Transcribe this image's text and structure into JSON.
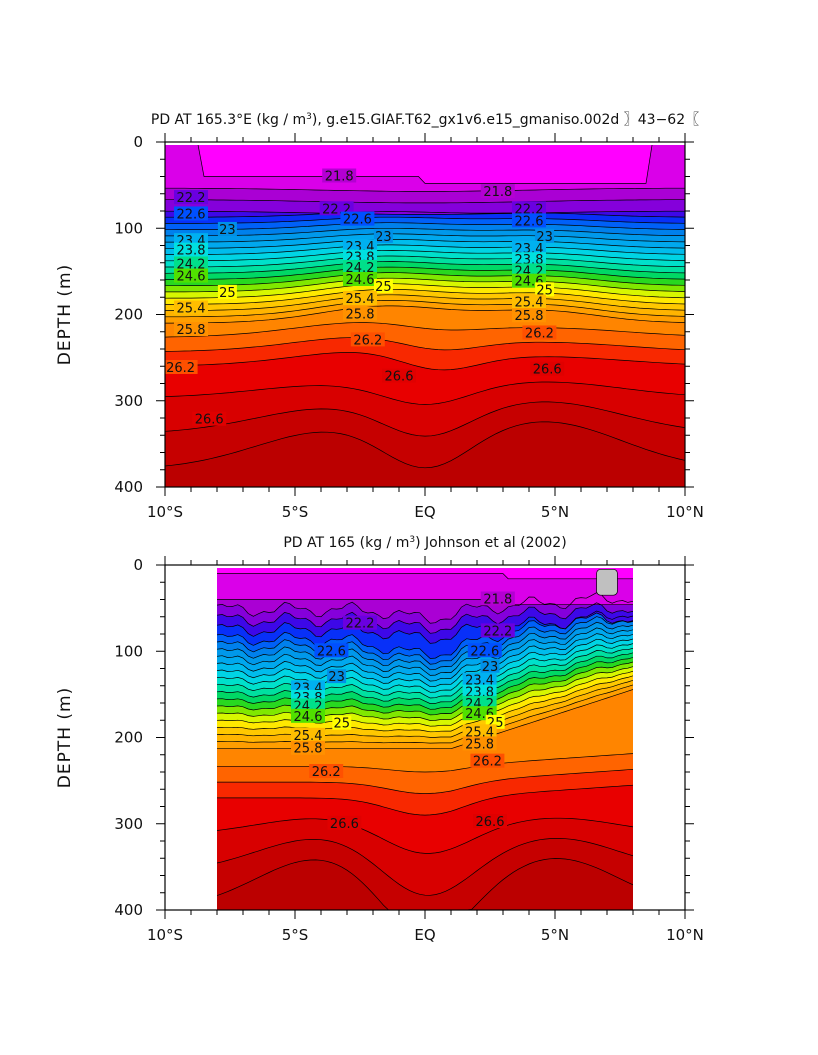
{
  "chart_data": [
    {
      "type": "contour",
      "title": "PD AT 165.3°E (kg / m³), g.e15.GIAF.T62_gx1v6.e15_gmaniso.002d 〗43–62〖",
      "title_parts": [
        "PD AT 165.3°E (kg / m",
        "3",
        "), g.e15.GIAF.T62_gx1v6.e15_gmaniso.002d ",
        "〗43−62〖"
      ],
      "ylabel": "DEPTH (m)",
      "xlabel": "",
      "x_tick_labels": [
        "10°S",
        "5°S",
        "EQ",
        "5°N",
        "10°N"
      ],
      "y_tick_labels": [
        "0",
        "100",
        "200",
        "300",
        "400"
      ],
      "xlim": [
        -10,
        10
      ],
      "ylim": [
        400,
        0
      ],
      "y_inverted": true,
      "x_coverage": [
        -10,
        10
      ],
      "contour_interval": 0.2,
      "level_range": [
        21.6,
        27.0
      ],
      "mixed_layer_top": 21.6,
      "contour_labels": [
        {
          "text": "21.8",
          "x": -3.3,
          "depth": 40
        },
        {
          "text": "21.8",
          "x": 2.8,
          "depth": 58
        },
        {
          "text": "22.2",
          "x": -9.0,
          "depth": 65
        },
        {
          "text": "22.6",
          "x": -9.0,
          "depth": 84
        },
        {
          "text": "23",
          "x": -7.6,
          "depth": 102
        },
        {
          "text": "23.4",
          "x": -9.0,
          "depth": 115
        },
        {
          "text": "23.8",
          "x": -9.0,
          "depth": 126
        },
        {
          "text": "24.2",
          "x": -9.0,
          "depth": 142
        },
        {
          "text": "24.6",
          "x": -9.0,
          "depth": 156
        },
        {
          "text": "25",
          "x": -7.6,
          "depth": 175
        },
        {
          "text": "25.4",
          "x": -9.0,
          "depth": 193
        },
        {
          "text": "25.8",
          "x": -9.0,
          "depth": 218
        },
        {
          "text": "26.2",
          "x": -9.4,
          "depth": 262
        },
        {
          "text": "26.6",
          "x": -8.3,
          "depth": 322
        },
        {
          "text": "22.2",
          "x": -3.4,
          "depth": 78
        },
        {
          "text": "22.6",
          "x": -2.6,
          "depth": 90
        },
        {
          "text": "23",
          "x": -1.6,
          "depth": 110
        },
        {
          "text": "23.4",
          "x": -2.5,
          "depth": 122
        },
        {
          "text": "23.8",
          "x": -2.5,
          "depth": 134
        },
        {
          "text": "24.2",
          "x": -2.5,
          "depth": 146
        },
        {
          "text": "24.6",
          "x": -2.5,
          "depth": 160
        },
        {
          "text": "25",
          "x": -1.6,
          "depth": 168
        },
        {
          "text": "25.4",
          "x": -2.5,
          "depth": 182
        },
        {
          "text": "25.8",
          "x": -2.5,
          "depth": 200
        },
        {
          "text": "26.2",
          "x": -2.2,
          "depth": 230
        },
        {
          "text": "26.6",
          "x": -1.0,
          "depth": 272
        },
        {
          "text": "22.2",
          "x": 4.0,
          "depth": 78
        },
        {
          "text": "22.6",
          "x": 4.0,
          "depth": 92
        },
        {
          "text": "23",
          "x": 4.6,
          "depth": 110
        },
        {
          "text": "23.4",
          "x": 4.0,
          "depth": 124
        },
        {
          "text": "23.8",
          "x": 4.0,
          "depth": 137
        },
        {
          "text": "24.2",
          "x": 4.0,
          "depth": 150
        },
        {
          "text": "24.6",
          "x": 4.0,
          "depth": 162
        },
        {
          "text": "25",
          "x": 4.6,
          "depth": 172
        },
        {
          "text": "25.4",
          "x": 4.0,
          "depth": 186
        },
        {
          "text": "25.8",
          "x": 4.0,
          "depth": 202
        },
        {
          "text": "26.2",
          "x": 4.4,
          "depth": 222
        },
        {
          "text": "26.6",
          "x": 4.7,
          "depth": 264
        }
      ]
    },
    {
      "type": "contour",
      "title": "PD AT 165 (kg / m³) Johnson et al (2002)",
      "title_parts": [
        "PD AT 165 (kg / m",
        "3",
        ") Johnson et al (2002)"
      ],
      "ylabel": "DEPTH (m)",
      "xlabel": "",
      "x_tick_labels": [
        "10°S",
        "5°S",
        "EQ",
        "5°N",
        "10°N"
      ],
      "y_tick_labels": [
        "0",
        "100",
        "200",
        "300",
        "400"
      ],
      "xlim": [
        -10,
        10
      ],
      "ylim": [
        400,
        0
      ],
      "y_inverted": true,
      "x_coverage": [
        -8,
        8
      ],
      "contour_interval": 0.2,
      "level_range": [
        21.6,
        27.0
      ],
      "missing_data_patch": {
        "x": [
          6.6,
          7.4
        ],
        "depth": [
          5,
          35
        ]
      },
      "contour_labels": [
        {
          "text": "21.8",
          "x": 2.8,
          "depth": 40
        },
        {
          "text": "22.2",
          "x": -2.5,
          "depth": 68
        },
        {
          "text": "22.2",
          "x": 2.8,
          "depth": 77
        },
        {
          "text": "22.6",
          "x": -3.6,
          "depth": 100
        },
        {
          "text": "22.6",
          "x": 2.3,
          "depth": 100
        },
        {
          "text": "23",
          "x": -3.4,
          "depth": 130
        },
        {
          "text": "23",
          "x": 2.5,
          "depth": 118
        },
        {
          "text": "23.4",
          "x": -4.5,
          "depth": 143
        },
        {
          "text": "23.4",
          "x": 2.1,
          "depth": 134
        },
        {
          "text": "23.8",
          "x": -4.5,
          "depth": 154
        },
        {
          "text": "23.8",
          "x": 2.1,
          "depth": 148
        },
        {
          "text": "24.2",
          "x": -4.5,
          "depth": 164
        },
        {
          "text": "24.2",
          "x": 2.1,
          "depth": 161
        },
        {
          "text": "24.6",
          "x": -4.5,
          "depth": 176
        },
        {
          "text": "24.6",
          "x": 2.1,
          "depth": 173
        },
        {
          "text": "25",
          "x": -3.2,
          "depth": 184
        },
        {
          "text": "25",
          "x": 2.7,
          "depth": 183
        },
        {
          "text": "25.4",
          "x": -4.5,
          "depth": 198
        },
        {
          "text": "25.4",
          "x": 2.1,
          "depth": 194
        },
        {
          "text": "25.8",
          "x": -4.5,
          "depth": 213
        },
        {
          "text": "25.8",
          "x": 2.1,
          "depth": 208
        },
        {
          "text": "26.2",
          "x": -3.8,
          "depth": 240
        },
        {
          "text": "26.2",
          "x": 2.4,
          "depth": 228
        },
        {
          "text": "26.6",
          "x": -3.1,
          "depth": 300
        },
        {
          "text": "26.6",
          "x": 2.5,
          "depth": 298
        }
      ]
    }
  ]
}
